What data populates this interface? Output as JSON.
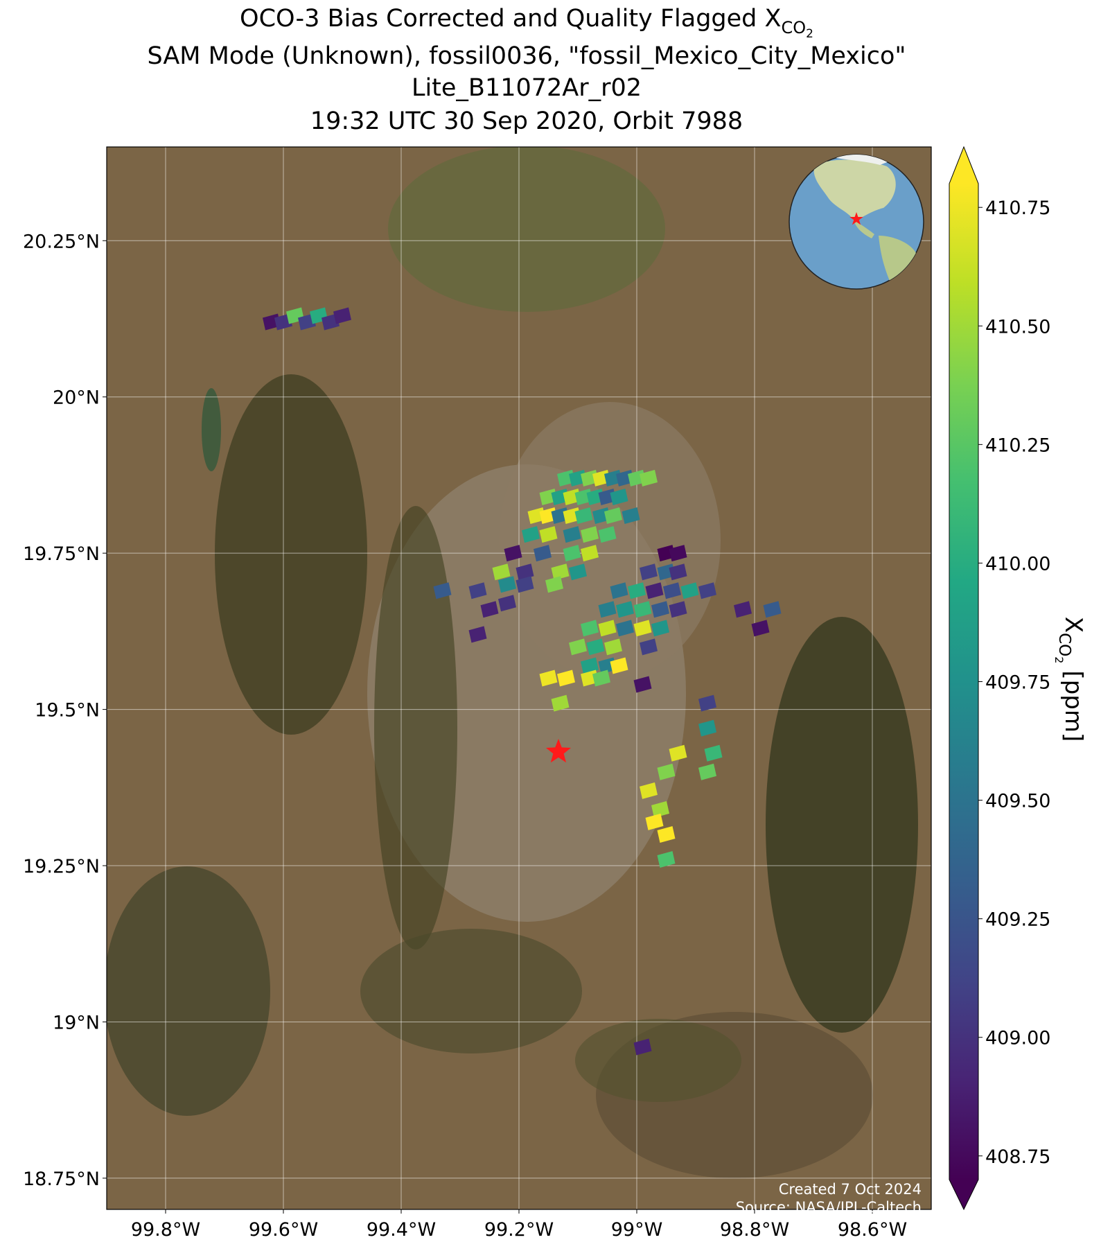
{
  "chart_data": {
    "type": "scatter",
    "title": {
      "line1": "OCO-3 Bias Corrected and Quality Flagged X",
      "line1_sub": "CO",
      "line1_subsub": "2",
      "line2": "SAM Mode (Unknown), fossil0036, \"fossil_Mexico_City_Mexico\"",
      "line3": "Lite_B11072Ar_r02",
      "line4": "19:32 UTC 30 Sep 2020, Orbit 7988"
    },
    "x": [
      -99.62,
      -99.6,
      -99.58,
      -99.56,
      -99.54,
      -99.52,
      -99.5,
      -99.12,
      -99.1,
      -99.08,
      -99.06,
      -99.04,
      -99.02,
      -99.0,
      -98.98,
      -99.15,
      -99.13,
      -99.11,
      -99.09,
      -99.07,
      -99.05,
      -99.03,
      -99.17,
      -99.15,
      -99.13,
      -99.11,
      -99.09,
      -99.06,
      -99.04,
      -99.01,
      -99.18,
      -99.15,
      -99.11,
      -99.08,
      -99.05,
      -99.21,
      -99.16,
      -99.11,
      -99.08,
      -99.23,
      -99.19,
      -99.13,
      -99.1,
      -99.22,
      -99.19,
      -99.14,
      -98.95,
      -98.93,
      -98.98,
      -98.95,
      -98.93,
      -99.03,
      -99.0,
      -98.97,
      -98.94,
      -98.91,
      -98.88,
      -99.05,
      -99.02,
      -98.99,
      -98.96,
      -98.93,
      -99.08,
      -99.05,
      -99.02,
      -98.99,
      -98.96,
      -99.1,
      -99.07,
      -99.04,
      -98.98,
      -99.08,
      -99.05,
      -99.03,
      -99.15,
      -99.12,
      -99.08,
      -99.06,
      -99.13,
      -98.99,
      -98.82,
      -98.79,
      -98.77,
      -99.33,
      -99.27,
      -99.25,
      -99.27,
      -99.22,
      -98.88,
      -98.88,
      -98.87,
      -98.93,
      -98.95,
      -98.88,
      -98.98,
      -98.96,
      -98.97,
      -98.95,
      -98.95,
      -98.99
    ],
    "y": [
      20.12,
      20.12,
      20.13,
      20.12,
      20.13,
      20.12,
      20.13,
      19.87,
      19.87,
      19.87,
      19.87,
      19.87,
      19.87,
      19.87,
      19.87,
      19.84,
      19.84,
      19.84,
      19.84,
      19.84,
      19.84,
      19.84,
      19.81,
      19.81,
      19.81,
      19.81,
      19.81,
      19.81,
      19.81,
      19.81,
      19.78,
      19.78,
      19.78,
      19.78,
      19.78,
      19.75,
      19.75,
      19.75,
      19.75,
      19.72,
      19.72,
      19.72,
      19.72,
      19.7,
      19.7,
      19.7,
      19.75,
      19.75,
      19.72,
      19.72,
      19.72,
      19.69,
      19.69,
      19.69,
      19.69,
      19.69,
      19.69,
      19.66,
      19.66,
      19.66,
      19.66,
      19.66,
      19.63,
      19.63,
      19.63,
      19.63,
      19.63,
      19.6,
      19.6,
      19.6,
      19.6,
      19.57,
      19.57,
      19.57,
      19.55,
      19.55,
      19.55,
      19.55,
      19.51,
      19.54,
      19.66,
      19.63,
      19.66,
      19.69,
      19.69,
      19.66,
      19.62,
      19.67,
      19.51,
      19.47,
      19.43,
      19.43,
      19.4,
      19.4,
      19.37,
      19.34,
      19.32,
      19.3,
      19.26,
      18.96
    ],
    "values": [
      408.8,
      409.0,
      410.3,
      409.1,
      410.0,
      409.0,
      408.9,
      410.2,
      409.9,
      410.4,
      410.7,
      409.6,
      409.4,
      410.3,
      410.4,
      410.4,
      409.9,
      410.6,
      410.2,
      410.0,
      409.3,
      409.8,
      410.7,
      410.8,
      409.5,
      410.7,
      410.1,
      409.7,
      410.3,
      409.6,
      409.9,
      410.6,
      409.6,
      410.4,
      410.2,
      408.8,
      409.3,
      410.2,
      410.6,
      410.5,
      409.0,
      410.5,
      409.8,
      409.7,
      409.1,
      410.4,
      408.7,
      408.75,
      409.1,
      409.4,
      409.0,
      409.5,
      410.0,
      408.9,
      409.2,
      409.9,
      409.1,
      409.6,
      409.8,
      410.1,
      409.3,
      409.0,
      410.2,
      410.6,
      409.5,
      410.7,
      409.8,
      410.4,
      410.0,
      410.5,
      409.1,
      409.9,
      409.6,
      410.8,
      410.75,
      410.8,
      410.7,
      410.3,
      410.5,
      408.8,
      408.9,
      408.8,
      409.3,
      409.3,
      409.1,
      408.9,
      408.9,
      409.0,
      409.1,
      409.8,
      410.1,
      410.7,
      410.4,
      410.3,
      410.7,
      410.5,
      410.8,
      410.8,
      410.2,
      408.9
    ],
    "cmap": "viridis",
    "xlim": [
      -99.9,
      -98.5
    ],
    "ylim": [
      18.7,
      20.4
    ],
    "xticks": [
      {
        "value": -99.8,
        "label": "99.8°W"
      },
      {
        "value": -99.6,
        "label": "99.6°W"
      },
      {
        "value": -99.4,
        "label": "99.4°W"
      },
      {
        "value": -99.2,
        "label": "99.2°W"
      },
      {
        "value": -99.0,
        "label": "99°W"
      },
      {
        "value": -98.8,
        "label": "98.8°W"
      },
      {
        "value": -98.6,
        "label": "98.6°W"
      }
    ],
    "yticks": [
      {
        "value": 18.75,
        "label": "18.75°N"
      },
      {
        "value": 19.0,
        "label": "19°N"
      },
      {
        "value": 19.25,
        "label": "19.25°N"
      },
      {
        "value": 19.5,
        "label": "19.5°N"
      },
      {
        "value": 19.75,
        "label": "19.75°N"
      },
      {
        "value": 20.0,
        "label": "20°N"
      },
      {
        "value": 20.25,
        "label": "20.25°N"
      }
    ],
    "grid": true,
    "site": {
      "x": -99.133,
      "y": 19.432
    },
    "colorbar": {
      "label": "X",
      "label_sub": "CO",
      "label_subsub": "2",
      "label_unit": "[ppm]",
      "lim": [
        408.7,
        410.8
      ],
      "ticks": [
        {
          "value": 408.75,
          "label": "408.75"
        },
        {
          "value": 409.0,
          "label": "409.00"
        },
        {
          "value": 409.25,
          "label": "409.25"
        },
        {
          "value": 409.5,
          "label": "409.50"
        },
        {
          "value": 409.75,
          "label": "409.75"
        },
        {
          "value": 410.0,
          "label": "410.00"
        },
        {
          "value": 410.25,
          "label": "410.25"
        },
        {
          "value": 410.5,
          "label": "410.50"
        },
        {
          "value": 410.75,
          "label": "410.75"
        }
      ]
    },
    "annotations": [
      "Created 7 Oct 2024",
      "Source: NASA/JPL-Caltech"
    ]
  }
}
